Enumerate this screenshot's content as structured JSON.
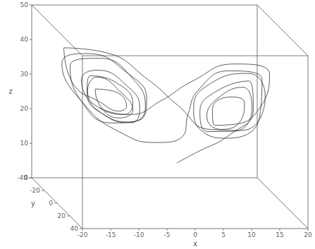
{
  "chart_data": {
    "type": "line3d",
    "xlabel": "x",
    "ylabel": "y",
    "zlabel": "z",
    "xlim": [
      -20,
      20
    ],
    "ylim": [
      -40,
      40
    ],
    "zlim": [
      0,
      50
    ],
    "xticks": [
      -20,
      -15,
      -10,
      -5,
      0,
      5,
      10,
      15,
      20
    ],
    "yticks": [
      -40,
      -20,
      0,
      20,
      40
    ],
    "zticks": [
      0,
      10,
      20,
      30,
      40,
      50
    ],
    "color": "#333333",
    "points": [
      [
        1,
        2,
        12
      ],
      [
        4,
        7,
        16
      ],
      [
        9,
        13,
        22
      ],
      [
        13,
        16,
        30
      ],
      [
        13,
        9,
        37
      ],
      [
        8,
        3,
        33
      ],
      [
        5,
        3,
        27
      ],
      [
        6,
        7,
        22
      ],
      [
        10,
        12,
        23
      ],
      [
        13,
        14,
        30
      ],
      [
        12,
        8,
        35
      ],
      [
        8,
        4,
        31
      ],
      [
        6,
        5,
        26
      ],
      [
        8,
        9,
        23
      ],
      [
        11,
        13,
        26
      ],
      [
        12,
        11,
        31
      ],
      [
        10,
        7,
        32
      ],
      [
        7,
        5,
        28
      ],
      [
        7,
        8,
        24
      ],
      [
        10,
        12,
        25
      ],
      [
        14,
        18,
        31
      ],
      [
        16,
        15,
        40
      ],
      [
        11,
        4,
        41
      ],
      [
        4,
        -1,
        35
      ],
      [
        -1,
        -4,
        29
      ],
      [
        -6,
        -9,
        24
      ],
      [
        -11,
        -15,
        25
      ],
      [
        -14,
        -15,
        33
      ],
      [
        -12,
        -8,
        37
      ],
      [
        -7,
        -3,
        33
      ],
      [
        -5,
        -3,
        27
      ],
      [
        -6,
        -7,
        22
      ],
      [
        -10,
        -12,
        23
      ],
      [
        -13,
        -14,
        30
      ],
      [
        -12,
        -8,
        35
      ],
      [
        -8,
        -4,
        31
      ],
      [
        -6,
        -5,
        26
      ],
      [
        -8,
        -9,
        23
      ],
      [
        -11,
        -13,
        26
      ],
      [
        -12,
        -11,
        31
      ],
      [
        -9,
        -7,
        31
      ],
      [
        -7,
        -6,
        27
      ],
      [
        -8,
        -9,
        25
      ],
      [
        -11,
        -12,
        27
      ],
      [
        -15,
        -19,
        31
      ],
      [
        -17,
        -16,
        42
      ],
      [
        -11,
        -3,
        43
      ],
      [
        -4,
        2,
        36
      ],
      [
        1,
        4,
        29
      ],
      [
        6,
        9,
        23
      ],
      [
        11,
        16,
        24
      ],
      [
        15,
        17,
        34
      ],
      [
        13,
        8,
        39
      ],
      [
        7,
        2,
        35
      ],
      [
        4,
        2,
        28
      ],
      [
        5,
        6,
        22
      ],
      [
        9,
        12,
        21
      ],
      [
        14,
        17,
        28
      ],
      [
        15,
        12,
        38
      ],
      [
        10,
        4,
        39
      ],
      [
        5,
        1,
        33
      ],
      [
        3,
        2,
        26
      ],
      [
        2,
        3,
        20
      ],
      [
        -2,
        -3,
        17
      ],
      [
        -7,
        -11,
        18
      ],
      [
        -13,
        -19,
        25
      ],
      [
        -17,
        -19,
        37
      ],
      [
        -14,
        -7,
        42
      ],
      [
        -7,
        0,
        37
      ],
      [
        -4,
        -1,
        30
      ],
      [
        -5,
        -5,
        23
      ],
      [
        -9,
        -12,
        21
      ],
      [
        -14,
        -18,
        27
      ],
      [
        -16,
        -15,
        37
      ],
      [
        -12,
        -5,
        41
      ],
      [
        -6,
        -1,
        35
      ],
      [
        -4,
        -3,
        27
      ],
      [
        -6,
        -8,
        22
      ],
      [
        -10,
        -13,
        23
      ],
      [
        -13,
        -15,
        29
      ],
      [
        -13,
        -10,
        35
      ],
      [
        -9,
        -5,
        34
      ],
      [
        -6,
        -5,
        28
      ],
      [
        -7,
        -9,
        24
      ],
      [
        -11,
        -14,
        25
      ]
    ]
  }
}
